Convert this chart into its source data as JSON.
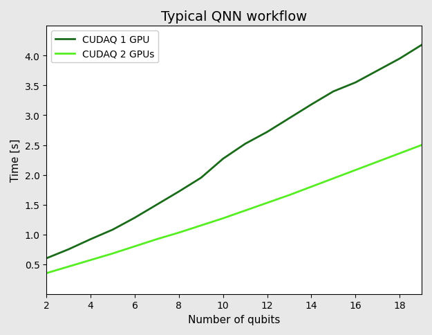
{
  "title": "Typical QNN workflow",
  "xlabel": "Number of qubits",
  "ylabel": "Time [s]",
  "xlim": [
    2,
    19
  ],
  "ylim": [
    0,
    4.5
  ],
  "xticks": [
    2,
    4,
    6,
    8,
    10,
    12,
    14,
    16,
    18
  ],
  "yticks": [
    0.5,
    1.0,
    1.5,
    2.0,
    2.5,
    3.0,
    3.5,
    4.0
  ],
  "series": [
    {
      "label": "CUDAQ 1 GPU",
      "color": "#1a6b1a",
      "linewidth": 2.0,
      "x": [
        2,
        3,
        4,
        5,
        6,
        7,
        8,
        9,
        10,
        11,
        12,
        13,
        14,
        15,
        16,
        17,
        18,
        19
      ],
      "y": [
        0.6,
        0.75,
        0.92,
        1.08,
        1.28,
        1.5,
        1.72,
        1.95,
        2.27,
        2.52,
        2.72,
        2.95,
        3.18,
        3.4,
        3.55,
        3.75,
        3.95,
        4.18
      ]
    },
    {
      "label": "CUDAQ 2 GPUs",
      "color": "#55ee22",
      "linewidth": 2.0,
      "x": [
        2,
        3,
        4,
        5,
        6,
        7,
        8,
        9,
        10,
        11,
        12,
        13,
        14,
        15,
        16,
        17,
        18,
        19
      ],
      "y": [
        0.35,
        0.46,
        0.57,
        0.68,
        0.8,
        0.92,
        1.03,
        1.15,
        1.27,
        1.4,
        1.53,
        1.66,
        1.8,
        1.94,
        2.08,
        2.22,
        2.36,
        2.5
      ]
    }
  ],
  "legend_loc": "upper left",
  "bg_color": "#e8e8e8",
  "axes_bg_color": "#ffffff",
  "title_fontsize": 14,
  "label_fontsize": 11,
  "tick_fontsize": 10,
  "legend_fontsize": 10
}
